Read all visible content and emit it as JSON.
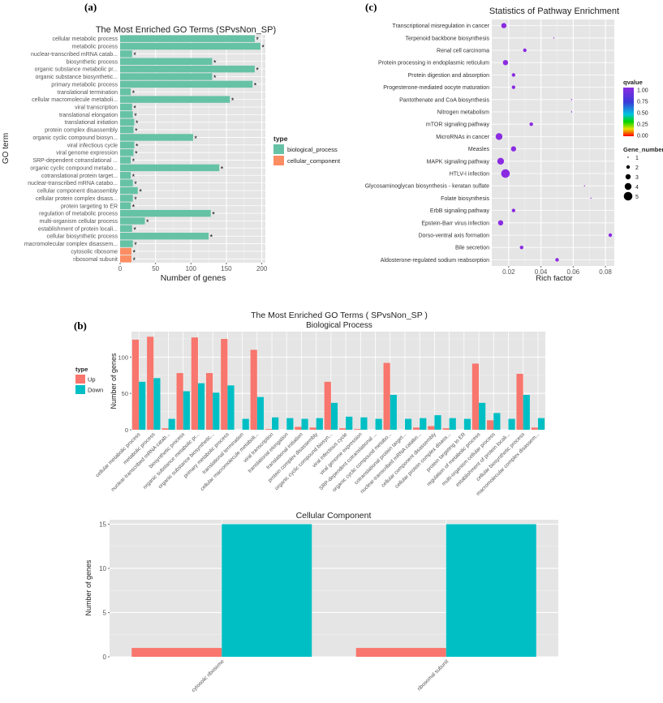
{
  "panels": {
    "a": "(a)",
    "b": "(b)",
    "c": "(c)"
  },
  "chart_data": [
    {
      "type": "bar",
      "orientation": "horizontal",
      "title": "The Most Enriched GO Terms (SPvsNon_SP)",
      "xlabel": "Number of genes",
      "ylabel": "GO term",
      "xlim": [
        0,
        205
      ],
      "xticks": [
        "0",
        "50",
        "100",
        "150",
        "200"
      ],
      "marker": "*",
      "legend": {
        "title": "type",
        "position": "right",
        "entries": [
          {
            "name": "biological_process",
            "color": "#66c2a5"
          },
          {
            "name": "cellular_component",
            "color": "#fc8d62"
          }
        ]
      },
      "categories": [
        "cellular metabolic process",
        "metabolic process",
        "nuclear-transcribed mRNA catab...",
        "biosynthetic process",
        "organic substance metabolic pr...",
        "organic substance biosynthetic...",
        "primary metabolic process",
        "translational termination",
        "cellular macromolecule metaboli...",
        "viral transcription",
        "translational elongation",
        "translational initiation",
        "protein complex disassembly",
        "organic cyclic compound biosyn...",
        "viral infectious cycle",
        "viral genome expression",
        "SRP-dependent cotranslational ...",
        "organic cyclic compound metabo...",
        "cotranslational protein target...",
        "nuclear-transcribed mRNA catabo...",
        "cellular component disassembly",
        "cellular protein complex disass...",
        "protein targeting to ER",
        "regulation of metabolic process",
        "multi-organism cellular process",
        "establishment of protein locali...",
        "cellular biosynthetic process",
        "macromolecular complex disassem...",
        "cytosolic ribosome",
        "ribosomal subunit"
      ],
      "values": [
        190,
        198,
        17,
        130,
        190,
        130,
        187,
        15,
        155,
        17,
        18,
        20,
        19,
        103,
        20,
        19,
        15,
        140,
        15,
        18,
        25,
        18,
        15,
        128,
        35,
        17,
        125,
        18,
        16,
        16
      ],
      "types": [
        "biological_process",
        "biological_process",
        "biological_process",
        "biological_process",
        "biological_process",
        "biological_process",
        "biological_process",
        "biological_process",
        "biological_process",
        "biological_process",
        "biological_process",
        "biological_process",
        "biological_process",
        "biological_process",
        "biological_process",
        "biological_process",
        "biological_process",
        "biological_process",
        "biological_process",
        "biological_process",
        "biological_process",
        "biological_process",
        "biological_process",
        "biological_process",
        "biological_process",
        "biological_process",
        "biological_process",
        "biological_process",
        "cellular_component",
        "cellular_component"
      ]
    },
    {
      "type": "scatter",
      "title": "Statistics of Pathway Enrichment",
      "xlabel": "Rich factor",
      "ylabel": "",
      "xlim": [
        0.0095,
        0.0855
      ],
      "xticks": [
        0.02,
        0.04,
        0.06,
        0.08
      ],
      "xtick_labels": [
        "0.02",
        "0.04",
        "0.06",
        "0.08"
      ],
      "categories": [
        "Transcriptional misregulation in cancer",
        "Terpenoid backbone biosynthesis",
        "Renal cell carcinoma",
        "Protein processing in endoplasmic reticulum",
        "Protein digestion and absorption",
        "Progesterone-mediated oocyte maturation",
        "Pantothenate and CoA biosynthesis",
        "Nitrogen metabolism",
        "mTOR signaling pathway",
        "MicroRNAs in cancer",
        "Measles",
        "MAPK signaling pathway",
        "HTLV-I infection",
        "Glycosaminoglycan biosynthesis - keratan sulfate",
        "Folate biosynthesis",
        "ErbB signaling pathway",
        "Epstein-Barr virus infection",
        "Dorso-ventral axis formation",
        "Bile secretion",
        "Aldosterone-regulated sodium reabsorption"
      ],
      "rich_factor": [
        0.017,
        0.048,
        0.03,
        0.018,
        0.023,
        0.023,
        0.059,
        0.059,
        0.034,
        0.014,
        0.023,
        0.015,
        0.018,
        0.067,
        0.071,
        0.023,
        0.015,
        0.083,
        0.028,
        0.05
      ],
      "gene_number": [
        3,
        1,
        2,
        3,
        2,
        2,
        1,
        1,
        2,
        4,
        3,
        4,
        5,
        1,
        1,
        2,
        3,
        2,
        2,
        2
      ],
      "qvalue": [
        1,
        1,
        1,
        1,
        1,
        1,
        1,
        1,
        1,
        1,
        1,
        1,
        1,
        1,
        1,
        1,
        1,
        1,
        1,
        1
      ],
      "qvalue_legend": {
        "title": "qvalue",
        "ticks": [
          "1.00",
          "0.75",
          "0.50",
          "0.25",
          "0.00"
        ]
      },
      "size_legend": {
        "title": "Gene_number",
        "values": [
          1,
          2,
          3,
          4,
          5
        ],
        "labels": [
          "1",
          "2",
          "3",
          "4",
          "5"
        ]
      }
    },
    {
      "type": "bar",
      "title": "The Most Enriched GO Terms ( SPvsNon_SP )",
      "subtitle": "Biological Process",
      "ylabel": "Number of genes",
      "ylim": [
        0,
        135
      ],
      "yticks": [
        "0",
        "50",
        "100"
      ],
      "legend": {
        "title": "type",
        "position": "left",
        "entries": [
          {
            "name": "Up",
            "color": "#f8766d"
          },
          {
            "name": "Down",
            "color": "#00bfc4"
          }
        ]
      },
      "categories": [
        "cellular metabolic process",
        "metabolic process",
        "nuclear-transcribed mRNA catab...",
        "biosynthetic process",
        "organic substance metabolic pr...",
        "organic substance biosynthetic...",
        "primary metabolic process",
        "translational termination",
        "cellular macromolecule metaboli...",
        "viral transcription",
        "translational elongation",
        "translational initiation",
        "protein complex disassembly",
        "organic cyclic compound biosyn...",
        "viral infectious cycle",
        "viral genome expression",
        "SRP-dependent cotranslational ...",
        "organic cyclic compound metabo...",
        "cotranslational protein target...",
        "nuclear-transcribed mRNA catabo...",
        "cellular component disassembly",
        "cellular protein complex disass...",
        "protein targeting to ER",
        "regulation of metabolic process",
        "multi-organism cellular process",
        "establishment of protein locali...",
        "cellular biosynthetic process",
        "macromolecular complex disassem..."
      ],
      "series": [
        {
          "name": "Up",
          "values": [
            124,
            128,
            2,
            78,
            127,
            78,
            125,
            0,
            110,
            1,
            0,
            4,
            3,
            66,
            2,
            1,
            0,
            92,
            0,
            3,
            5,
            2,
            0,
            91,
            13,
            0,
            77,
            3
          ]
        },
        {
          "name": "Down",
          "values": [
            66,
            71,
            15,
            53,
            64,
            51,
            61,
            15,
            45,
            17,
            16,
            15,
            16,
            37,
            18,
            17,
            15,
            48,
            15,
            16,
            20,
            16,
            15,
            37,
            23,
            15,
            48,
            16
          ]
        }
      ]
    },
    {
      "type": "bar",
      "title": "Cellular Component",
      "ylabel": "Number of genes",
      "ylim": [
        0,
        15.5
      ],
      "yticks": [
        "0",
        "5",
        "10",
        "15"
      ],
      "categories": [
        "cytosolic ribosome",
        "ribosomal subunit"
      ],
      "series": [
        {
          "name": "Up",
          "values": [
            1,
            1
          ]
        },
        {
          "name": "Down",
          "values": [
            15,
            15
          ]
        }
      ]
    }
  ]
}
